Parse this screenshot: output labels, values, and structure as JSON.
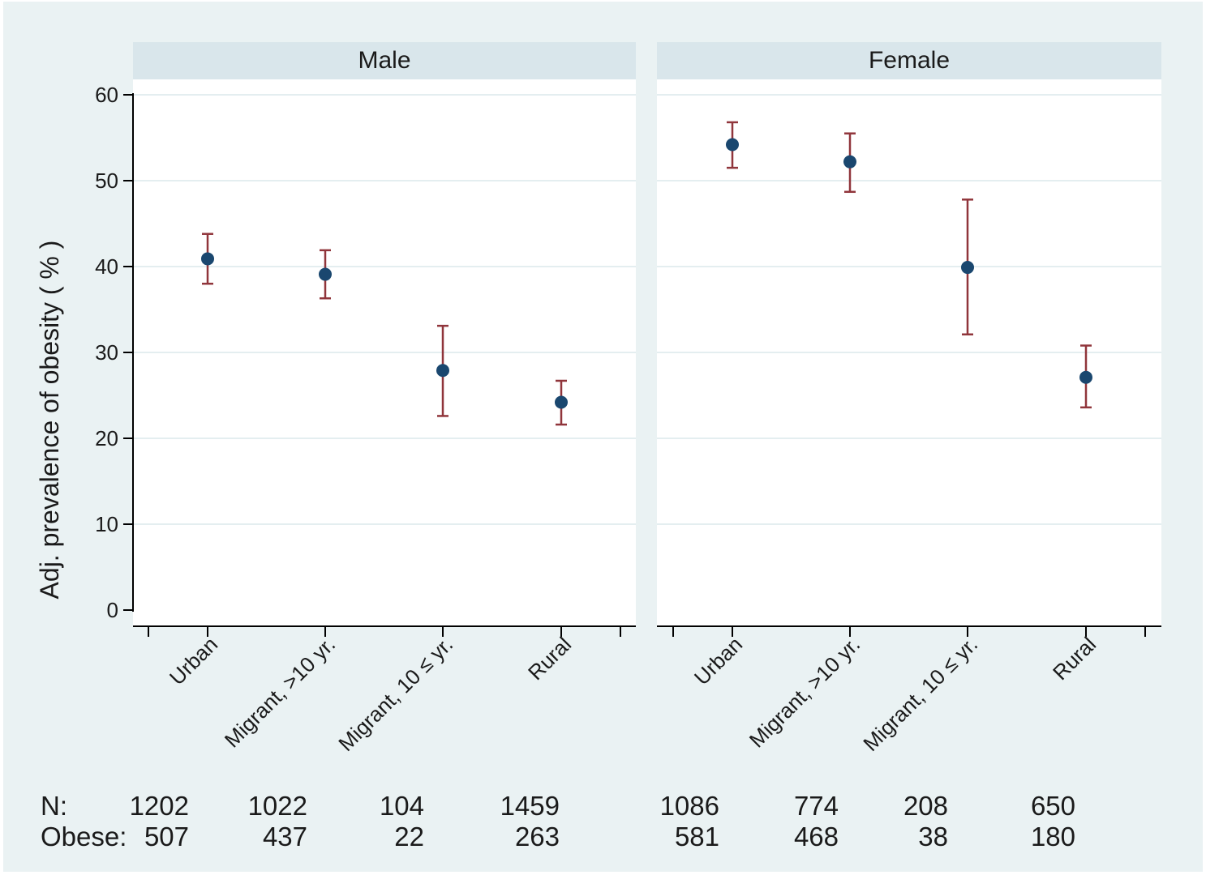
{
  "chart_data": {
    "type": "scatter",
    "subtype": "point estimates with 95% confidence interval error bars, two facet panels",
    "ylabel": "Adj. prevalence of obesity ( % )",
    "ylim": [
      0,
      60
    ],
    "yticks": [
      "0",
      "10",
      "20",
      "30",
      "40",
      "50",
      "60"
    ],
    "grid": true,
    "categories": [
      "Urban",
      "Migrant, >10 yr.",
      "Migrant, 10 ≤ yr.",
      "Rural"
    ],
    "panels": [
      {
        "title": "Male",
        "values": [
          40.9,
          39.1,
          27.9,
          24.2
        ],
        "ci_low": [
          38.0,
          36.3,
          22.6,
          21.6
        ],
        "ci_high": [
          43.8,
          41.9,
          33.1,
          26.7
        ],
        "n": [
          "1202",
          "1022",
          "104",
          "1459"
        ],
        "obese": [
          "507",
          "437",
          "22",
          "263"
        ]
      },
      {
        "title": "Female",
        "values": [
          54.2,
          52.2,
          39.9,
          27.1
        ],
        "ci_low": [
          51.5,
          48.7,
          32.1,
          23.6
        ],
        "ci_high": [
          56.8,
          55.5,
          47.8,
          30.8
        ],
        "n": [
          "1086",
          "774",
          "208",
          "650"
        ],
        "obese": [
          "581",
          "468",
          "38",
          "180"
        ]
      }
    ],
    "row_labels": {
      "n": "N:",
      "obese": "Obese:"
    },
    "colors": {
      "background": "#eaf2f3",
      "plot_area": "#ffffff",
      "strip": "#d9e6eb",
      "gridline": "#e4eef0",
      "marker": "#1a476f",
      "error_bar": "#90353b",
      "axis": "#000000"
    }
  }
}
